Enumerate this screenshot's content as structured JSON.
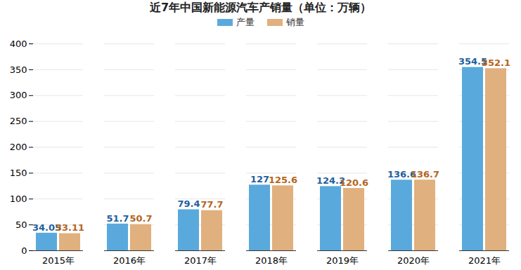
{
  "chart_data": {
    "type": "bar",
    "title": "近7年中国新能源汽车产销量（单位：万辆）",
    "categories": [
      "2015年",
      "2016年",
      "2017年",
      "2018年",
      "2019年",
      "2020年",
      "2021年"
    ],
    "series": [
      {
        "name": "产量",
        "color": "#5aa9dc",
        "values": [
          34.05,
          51.7,
          79.4,
          127,
          124.2,
          136.6,
          354.5
        ]
      },
      {
        "name": "销量",
        "color": "#e0b07e",
        "values": [
          33.11,
          50.7,
          77.7,
          125.6,
          120.6,
          136.7,
          352.1
        ]
      }
    ],
    "ylim": [
      0,
      400
    ],
    "yticks": [
      0,
      50,
      100,
      150,
      200,
      250,
      300,
      350,
      400
    ],
    "grid": true,
    "legend": "top",
    "data_labels": true
  }
}
